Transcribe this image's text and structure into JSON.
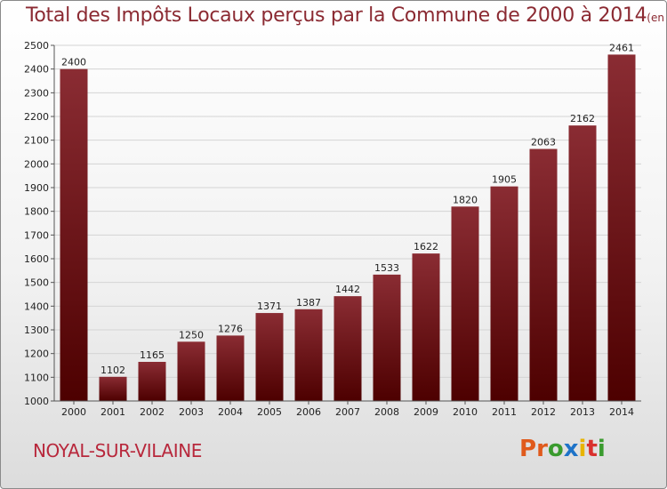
{
  "header": {
    "title": "Total des Impôts Locaux perçus par la Commune de 2000 à 2014",
    "unit": "(en milliers d'€)"
  },
  "footer": {
    "commune": "NOYAL-SUR-VILAINE",
    "logo": [
      "P",
      "r",
      "o",
      "x",
      "i",
      "t",
      "i"
    ],
    "logo_colors": [
      "#e05a1c",
      "#e05a1c",
      "#3a9b2e",
      "#1e73c8",
      "#e8b400",
      "#d9312e",
      "#3a9b2e"
    ]
  },
  "colors": {
    "bar_top": "#8a2c33",
    "bar_bottom": "#4d0000",
    "grid": "#d4d4d4",
    "axis": "#555555"
  },
  "chart_data": {
    "type": "bar",
    "title": "Total des Impôts Locaux perçus par la Commune de 2000 à 2014",
    "xlabel": "",
    "ylabel": "",
    "categories": [
      "2000",
      "2001",
      "2002",
      "2003",
      "2004",
      "2005",
      "2006",
      "2007",
      "2008",
      "2009",
      "2010",
      "2011",
      "2012",
      "2013",
      "2014"
    ],
    "values": [
      2400,
      1102,
      1165,
      1250,
      1276,
      1371,
      1387,
      1442,
      1533,
      1622,
      1820,
      1905,
      2063,
      2162,
      2461
    ],
    "ylim": [
      1000,
      2500
    ],
    "yticks": [
      1000,
      1100,
      1200,
      1300,
      1400,
      1500,
      1600,
      1700,
      1800,
      1900,
      2000,
      2100,
      2200,
      2300,
      2400,
      2500
    ],
    "grid": true
  }
}
